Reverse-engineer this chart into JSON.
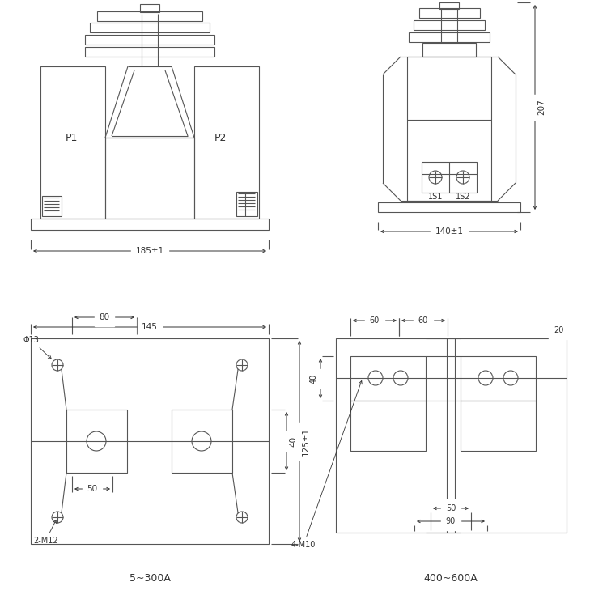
{
  "line_color": "#555555",
  "line_width": 0.8,
  "bg_color": "#ffffff",
  "fig_width": 7.29,
  "fig_height": 7.61,
  "label_5_300": "5~300A",
  "label_400_600": "400~600A",
  "dim_185": "185±1",
  "dim_140": "140±1",
  "dim_207": "207",
  "dim_145": "145",
  "dim_80": "80",
  "dim_50_bl": "50",
  "dim_40": "40",
  "dim_125": "125±1",
  "dim_20": "20",
  "dim_60L": "60",
  "dim_60R": "60",
  "dim_50_br": "50",
  "dim_90": "90",
  "dim_40_br": "40",
  "label_P1": "P1",
  "label_P2": "P2",
  "label_1S1": "1S1",
  "label_1S2": "1S2",
  "label_phi13": "Φ13",
  "label_2M12": "2-M12",
  "label_4M10": "4-M10"
}
